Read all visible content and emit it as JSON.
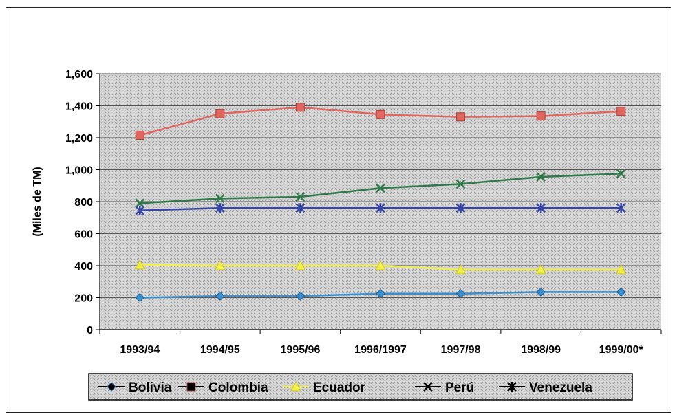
{
  "chart_data": {
    "type": "line",
    "title": "",
    "xlabel": "",
    "ylabel": "(Miles de TM)",
    "categories": [
      "1993/94",
      "1994/95",
      "1995/96",
      "1996/1997",
      "1997/98",
      "1998/99",
      "1999/00*"
    ],
    "ylim": [
      0,
      1600
    ],
    "yticks": [
      "0",
      "200",
      "400",
      "600",
      "800",
      "1,000",
      "1,200",
      "1,400",
      "1,600"
    ],
    "grid": true,
    "legend_position": "bottom",
    "series": [
      {
        "name": "Bolivia",
        "color": "#3a8fd0",
        "marker": "diamond",
        "values": [
          200,
          210,
          210,
          225,
          225,
          235,
          235
        ]
      },
      {
        "name": "Colombia",
        "color": "#e0665e",
        "marker": "square",
        "values": [
          1215,
          1350,
          1390,
          1345,
          1330,
          1335,
          1365
        ]
      },
      {
        "name": "Ecuador",
        "color": "#f2ef4a",
        "marker": "triangle",
        "values": [
          405,
          400,
          400,
          400,
          375,
          375,
          375
        ]
      },
      {
        "name": "Perú",
        "color": "#2f7a4a",
        "marker": "x",
        "values": [
          790,
          820,
          830,
          885,
          910,
          955,
          975
        ]
      },
      {
        "name": "Venezuela",
        "color": "#3545a8",
        "marker": "star",
        "values": [
          745,
          760,
          760,
          760,
          760,
          760,
          760
        ]
      }
    ]
  }
}
